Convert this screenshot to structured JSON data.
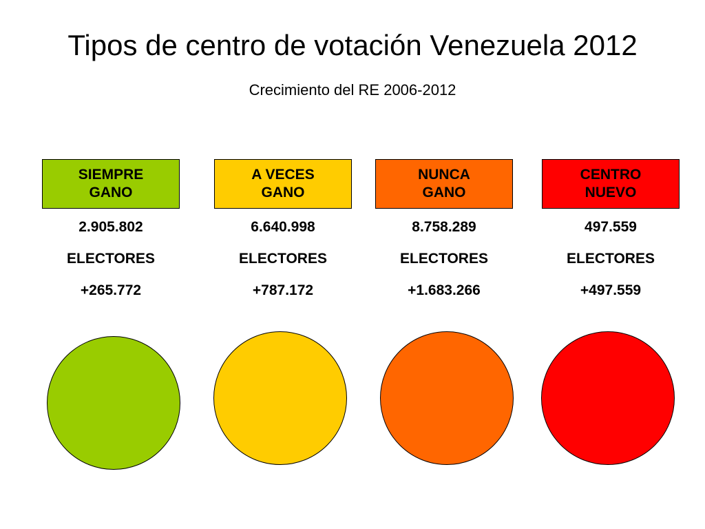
{
  "title": "Tipos de centro de votación Venezuela 2012",
  "subtitle": "Crecimiento del RE 2006-2012",
  "categories": [
    {
      "label_line1": "SIEMPRE",
      "label_line2": "GANO",
      "electores": "2.905.802",
      "unit": "ELECTORES",
      "crecimiento": "+265.772",
      "color": "#99CC00"
    },
    {
      "label_line1": "A VECES",
      "label_line2": "GANO",
      "electores": "6.640.998",
      "unit": "ELECTORES",
      "crecimiento": "+787.172",
      "color": "#FFCC00"
    },
    {
      "label_line1": "NUNCA",
      "label_line2": "GANO",
      "electores": "8.758.289",
      "unit": "ELECTORES",
      "crecimiento": "+1.683.266",
      "color": "#FF6600"
    },
    {
      "label_line1": "CENTRO",
      "label_line2": "NUEVO",
      "electores": "497.559",
      "unit": "ELECTORES",
      "crecimiento": "+497.559",
      "color": "#FF0000"
    }
  ]
}
